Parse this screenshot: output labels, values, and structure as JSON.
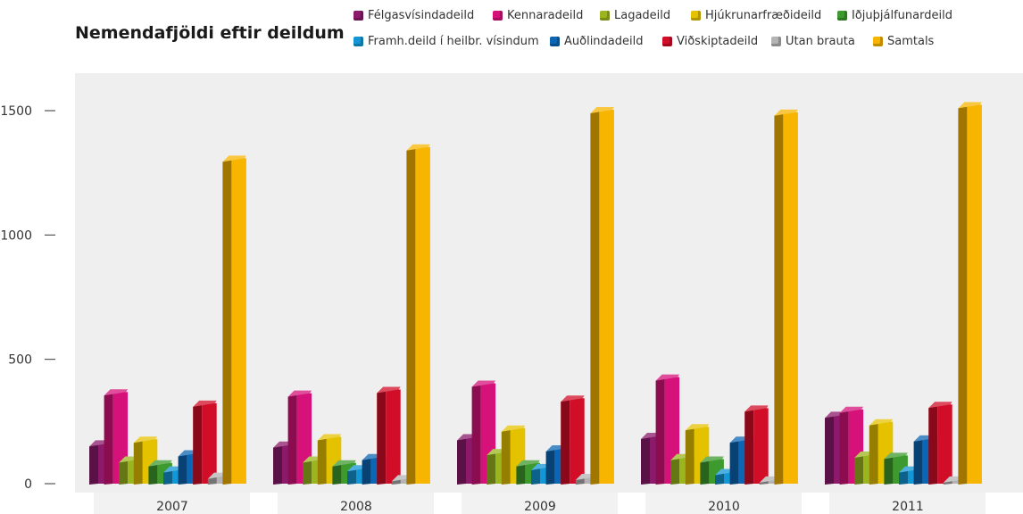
{
  "chart_data": {
    "type": "bar",
    "title": "Nemendafjöldi eftir deildum",
    "categories": [
      "2007",
      "2008",
      "2009",
      "2010",
      "2011"
    ],
    "ylim": [
      0,
      1600
    ],
    "yticks": [
      "0",
      "500",
      "1000",
      "1500"
    ],
    "ytick_values": [
      0,
      500,
      1000,
      1500
    ],
    "grid": false,
    "legend_position": "top",
    "series": [
      {
        "name": "Félgasvísindadeild",
        "color": "#8b1a6b",
        "values": [
          160,
          155,
          185,
          190,
          275
        ]
      },
      {
        "name": "Kennaradeild",
        "color": "#d6127a",
        "values": [
          365,
          360,
          400,
          425,
          295
        ]
      },
      {
        "name": "Lagadeild",
        "color": "#9bb51e",
        "values": [
          95,
          95,
          125,
          105,
          115
        ]
      },
      {
        "name": "Hjúkrunarfræðideild",
        "color": "#e5c200",
        "values": [
          175,
          185,
          220,
          225,
          245
        ]
      },
      {
        "name": "Iðjuþjálfunardeild",
        "color": "#3d9a2e",
        "values": [
          80,
          80,
          80,
          95,
          110
        ]
      },
      {
        "name": "Framh.deild í heilbr. vísindum",
        "color": "#1296d6",
        "values": [
          55,
          60,
          65,
          45,
          55
        ]
      },
      {
        "name": "Auðlindadeild",
        "color": "#0c66b3",
        "values": [
          120,
          105,
          140,
          175,
          180
        ]
      },
      {
        "name": "Viðskiptadeild",
        "color": "#d20d27",
        "values": [
          320,
          375,
          340,
          300,
          315
        ]
      },
      {
        "name": "Utan brauta",
        "color": "#b3b3b3",
        "values": [
          30,
          20,
          25,
          15,
          15
        ]
      },
      {
        "name": "Samtals",
        "color": "#f7b500",
        "values": [
          1305,
          1350,
          1500,
          1490,
          1520
        ]
      }
    ]
  }
}
